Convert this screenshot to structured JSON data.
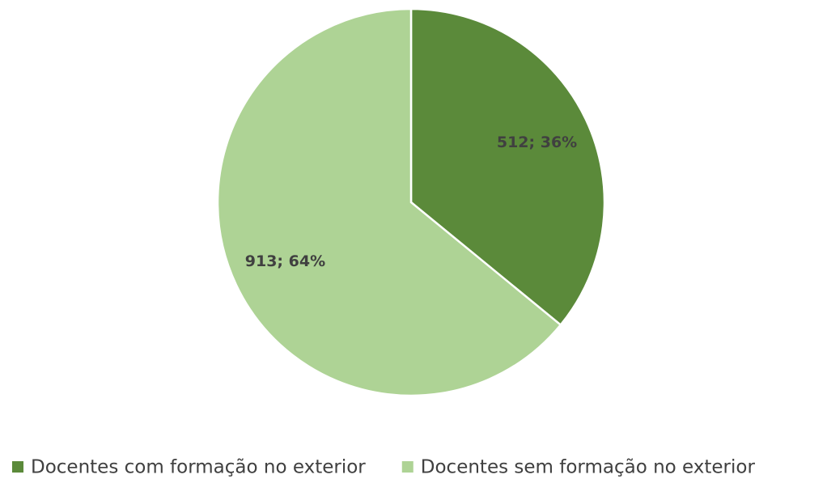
{
  "chart_data": {
    "type": "pie",
    "categories": [
      "Docentes com formação no exterior",
      "Docentes sem formação no exterior"
    ],
    "values": [
      512,
      913
    ],
    "value_labels": [
      "512; 36%",
      "913; 64%"
    ],
    "colors": [
      "#5b8a3a",
      "#aed395"
    ],
    "legend": "bottom"
  }
}
